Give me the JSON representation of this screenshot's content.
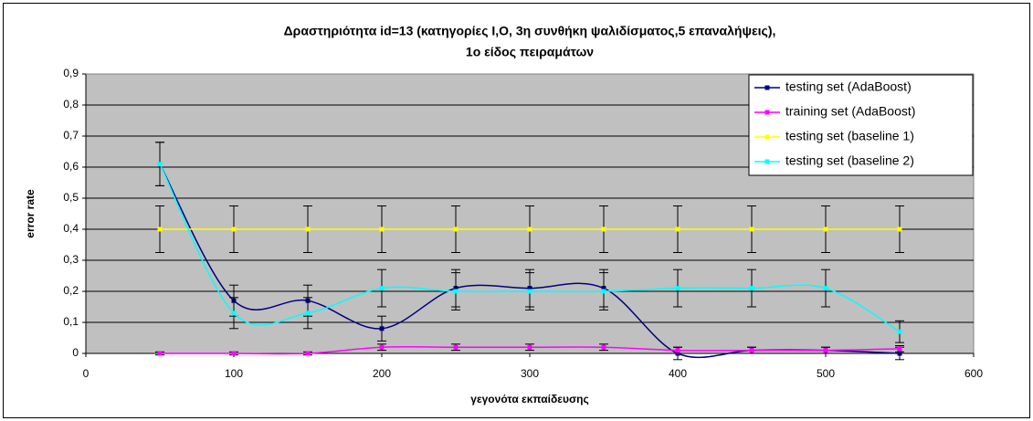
{
  "chart_data": {
    "type": "line",
    "title": [
      "Δραστηριότητα id=13 (κατηγορίες Ι,Ο, 3η συνθήκη ψαλιδίσματος,5 επαναλήψεις),",
      "1ο είδος πειραμάτων"
    ],
    "x_label": "γεγονότα εκπαίδευσης",
    "y_label": "error rate",
    "x": [
      50,
      100,
      150,
      200,
      250,
      300,
      350,
      400,
      450,
      500,
      550
    ],
    "series": [
      {
        "name": "testing set (AdaBoost)",
        "color": "#000080",
        "values": [
          0.61,
          0.17,
          0.17,
          0.08,
          0.21,
          0.21,
          0.21,
          0.0,
          0.01,
          0.01,
          0.0
        ],
        "errors": [
          0.07,
          0.05,
          0.05,
          0.04,
          0.06,
          0.06,
          0.06,
          0.02,
          0.01,
          0.01,
          0.02
        ]
      },
      {
        "name": "training set (AdaBoost)",
        "color": "#FF00FF",
        "values": [
          0.0,
          0.0,
          0.0,
          0.02,
          0.02,
          0.02,
          0.02,
          0.01,
          0.01,
          0.01,
          0.015
        ],
        "errors": [
          0.005,
          0.005,
          0.005,
          0.01,
          0.01,
          0.01,
          0.01,
          0.01,
          0.01,
          0.01,
          0.01
        ]
      },
      {
        "name": "testing set (baseline 1)",
        "color": "#FFFF00",
        "values": [
          0.4,
          0.4,
          0.4,
          0.4,
          0.4,
          0.4,
          0.4,
          0.4,
          0.4,
          0.4,
          0.4
        ],
        "errors": [
          0.075,
          0.075,
          0.075,
          0.075,
          0.075,
          0.075,
          0.075,
          0.075,
          0.075,
          0.075,
          0.075
        ]
      },
      {
        "name": "testing set (baseline 2)",
        "color": "#00FFFF",
        "values": [
          0.61,
          0.13,
          0.13,
          0.21,
          0.2,
          0.2,
          0.2,
          0.21,
          0.21,
          0.21,
          0.07
        ],
        "errors": [
          0.07,
          0.05,
          0.05,
          0.06,
          0.06,
          0.06,
          0.06,
          0.06,
          0.06,
          0.06,
          0.035
        ]
      }
    ],
    "xlim": [
      0,
      600
    ],
    "xticks": [
      0,
      100,
      200,
      300,
      400,
      500,
      600
    ],
    "ylim": [
      0,
      0.9
    ],
    "yticks": [
      0,
      {
        "value": 0.1,
        "label": "0,1"
      },
      {
        "value": 0.2,
        "label": "0,2"
      },
      {
        "value": 0.3,
        "label": "0,3"
      },
      {
        "value": 0.4,
        "label": "0,4"
      },
      {
        "value": 0.5,
        "label": "0,5"
      },
      {
        "value": 0.6,
        "label": "0,6"
      },
      {
        "value": 0.7,
        "label": "0,7"
      },
      {
        "value": 0.8,
        "label": "0,8"
      },
      {
        "value": 0.9,
        "label": "0,9"
      }
    ],
    "grid": true,
    "legend": "top-right"
  }
}
